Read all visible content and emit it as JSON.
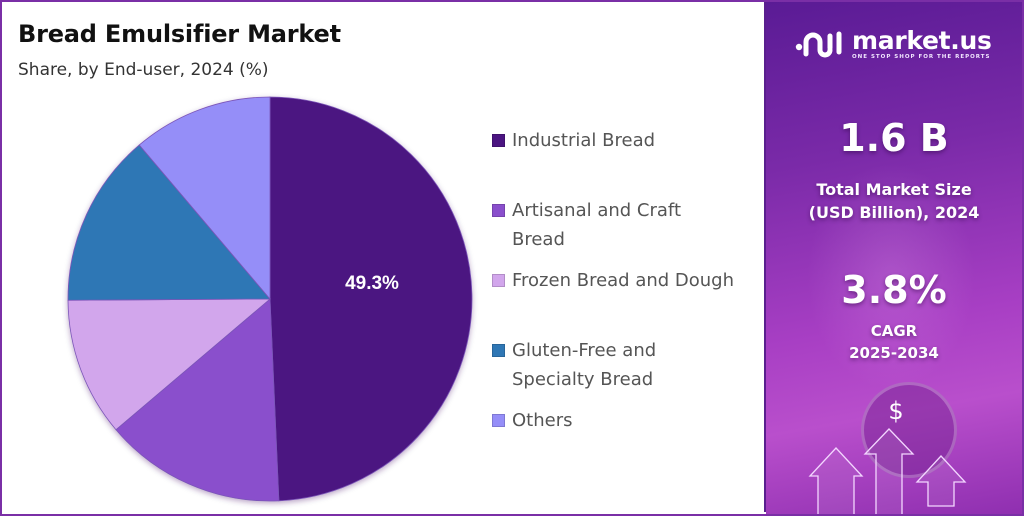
{
  "header": {
    "title": "Bread Emulsifier Market",
    "subtitle": "Share, by End-user, 2024 (%)"
  },
  "legend": [
    {
      "label": "Industrial Bread",
      "color": "#4b1581"
    },
    {
      "label": "Artisanal and Craft Bread",
      "color": "#8a4fcc"
    },
    {
      "label": "Frozen Bread and Dough",
      "color": "#d2a6ec"
    },
    {
      "label": "Gluten-Free and Specialty Bread",
      "color": "#2f77b5"
    },
    {
      "label": "Others",
      "color": "#958ef8"
    }
  ],
  "pie_label": "49.3%",
  "brand": {
    "name": "market.us",
    "tagline": "ONE STOP SHOP FOR THE REPORTS"
  },
  "stats": {
    "market_size_value": "1.6 B",
    "market_size_label_line1": "Total Market Size",
    "market_size_label_line2": "(USD Billion), 2024",
    "cagr_value": "3.8%",
    "cagr_label_line1": "CAGR",
    "cagr_label_line2": "2025-2034"
  },
  "icons": {
    "dollar": "$"
  },
  "chart_data": {
    "type": "pie",
    "title": "Bread Emulsifier Market",
    "subtitle": "Share, by End-user, 2024 (%)",
    "categories": [
      "Industrial Bread",
      "Artisanal and Craft Bread",
      "Frozen Bread and Dough",
      "Gluten-Free and Specialty Bread",
      "Others"
    ],
    "values": [
      49.3,
      14.5,
      11.1,
      13.9,
      11.2
    ],
    "colors": [
      "#4b1581",
      "#8a4fcc",
      "#d2a6ec",
      "#2f77b5",
      "#958ef8"
    ],
    "data_labels": {
      "Industrial Bread": "49.3%"
    },
    "start_angle": "12 o'clock, clockwise",
    "legend_position": "right"
  }
}
